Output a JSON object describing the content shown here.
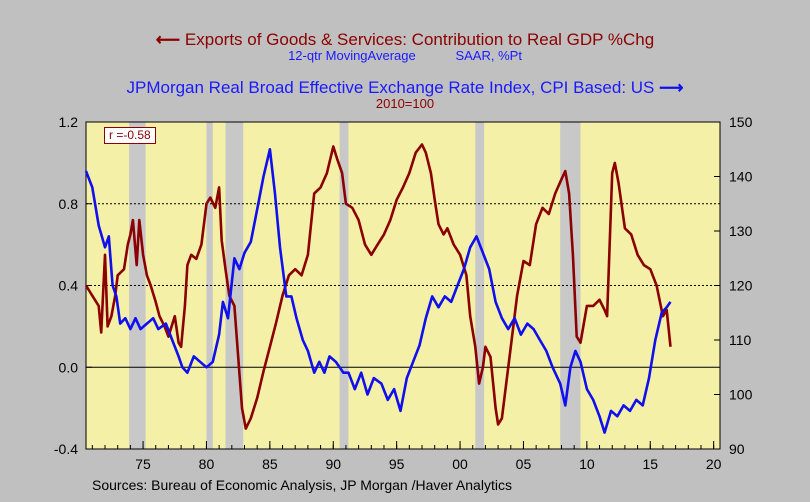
{
  "title": {
    "line1": "Exports of Goods & Services: Contribution to Real GDP %Chg",
    "line1_sub_left": "12-qtr MovingAverage",
    "line1_sub_right": "SAAR, %Pt",
    "line2": "JPMorgan Real Broad Effective Exchange Rate Index, CPI Based: US",
    "line2_sub": "2010=100"
  },
  "source": "Sources:  Bureau of Economic Analysis, JP Morgan /Haver Analytics",
  "annotation": "r =-0.58",
  "colors": {
    "exports": "#8b0000",
    "fx": "#1010ee",
    "plot_bg": "#f5f0a8",
    "recession": "#c8c8c8",
    "page_bg": "#c0c0c0"
  },
  "chart_data": {
    "type": "line",
    "x_axis": {
      "range": [
        1970.5,
        2020.5
      ],
      "ticks": [
        1975,
        1980,
        1985,
        1990,
        1995,
        2000,
        2005,
        2010,
        2015,
        2020
      ],
      "tick_labels": [
        "75",
        "80",
        "85",
        "90",
        "95",
        "00",
        "05",
        "10",
        "15",
        "20"
      ]
    },
    "y_left": {
      "range": [
        -0.4,
        1.2
      ],
      "ticks": [
        -0.4,
        0.0,
        0.4,
        0.8,
        1.2
      ],
      "tick_labels": [
        "-0.4",
        "0.0",
        "0.4",
        "0.8",
        "1.2"
      ],
      "reference_lines": [
        0.0,
        0.4,
        0.8
      ]
    },
    "y_right": {
      "range": [
        90,
        150
      ],
      "ticks": [
        90,
        100,
        110,
        120,
        130,
        140,
        150
      ],
      "tick_labels": [
        "90",
        "100",
        "110",
        "120",
        "130",
        "140",
        "150"
      ]
    },
    "recessions": [
      [
        1973.9,
        1975.2
      ],
      [
        1980.0,
        1980.5
      ],
      [
        1981.5,
        1982.9
      ],
      [
        1990.5,
        1991.2
      ],
      [
        2001.2,
        2001.9
      ],
      [
        2007.9,
        2009.5
      ]
    ],
    "series": [
      {
        "axis": "left",
        "points": [
          [
            1970.5,
            0.4
          ],
          [
            1971.0,
            0.35
          ],
          [
            1971.5,
            0.3
          ],
          [
            1971.7,
            0.17
          ],
          [
            1972.0,
            0.55
          ],
          [
            1972.2,
            0.2
          ],
          [
            1972.5,
            0.25
          ],
          [
            1972.8,
            0.35
          ],
          [
            1973.0,
            0.45
          ],
          [
            1973.5,
            0.48
          ],
          [
            1973.8,
            0.6
          ],
          [
            1974.0,
            0.65
          ],
          [
            1974.2,
            0.72
          ],
          [
            1974.5,
            0.5
          ],
          [
            1974.7,
            0.72
          ],
          [
            1975.0,
            0.55
          ],
          [
            1975.3,
            0.45
          ],
          [
            1975.6,
            0.4
          ],
          [
            1976.0,
            0.32
          ],
          [
            1976.3,
            0.25
          ],
          [
            1976.7,
            0.2
          ],
          [
            1977.0,
            0.15
          ],
          [
            1977.5,
            0.25
          ],
          [
            1977.8,
            0.12
          ],
          [
            1978.0,
            0.1
          ],
          [
            1978.3,
            0.3
          ],
          [
            1978.5,
            0.5
          ],
          [
            1978.8,
            0.55
          ],
          [
            1979.2,
            0.53
          ],
          [
            1979.6,
            0.6
          ],
          [
            1980.0,
            0.8
          ],
          [
            1980.3,
            0.83
          ],
          [
            1980.7,
            0.78
          ],
          [
            1981.0,
            0.88
          ],
          [
            1981.2,
            0.62
          ],
          [
            1981.5,
            0.48
          ],
          [
            1981.8,
            0.35
          ],
          [
            1982.2,
            0.3
          ],
          [
            1982.5,
            0.05
          ],
          [
            1982.8,
            -0.2
          ],
          [
            1983.1,
            -0.3
          ],
          [
            1983.5,
            -0.25
          ],
          [
            1984.0,
            -0.15
          ],
          [
            1984.5,
            -0.02
          ],
          [
            1985.0,
            0.1
          ],
          [
            1985.5,
            0.22
          ],
          [
            1986.0,
            0.35
          ],
          [
            1986.5,
            0.45
          ],
          [
            1987.0,
            0.48
          ],
          [
            1987.5,
            0.45
          ],
          [
            1988.0,
            0.55
          ],
          [
            1988.5,
            0.85
          ],
          [
            1989.0,
            0.88
          ],
          [
            1989.5,
            0.95
          ],
          [
            1990.0,
            1.08
          ],
          [
            1990.3,
            1.02
          ],
          [
            1990.7,
            0.95
          ],
          [
            1991.0,
            0.8
          ],
          [
            1991.5,
            0.78
          ],
          [
            1992.0,
            0.72
          ],
          [
            1992.5,
            0.6
          ],
          [
            1993.0,
            0.55
          ],
          [
            1993.5,
            0.6
          ],
          [
            1994.0,
            0.65
          ],
          [
            1994.5,
            0.72
          ],
          [
            1995.0,
            0.82
          ],
          [
            1995.5,
            0.88
          ],
          [
            1996.0,
            0.95
          ],
          [
            1996.5,
            1.05
          ],
          [
            1997.0,
            1.09
          ],
          [
            1997.3,
            1.05
          ],
          [
            1997.7,
            0.95
          ],
          [
            1998.0,
            0.82
          ],
          [
            1998.3,
            0.7
          ],
          [
            1998.7,
            0.65
          ],
          [
            1999.0,
            0.68
          ],
          [
            1999.5,
            0.6
          ],
          [
            2000.0,
            0.55
          ],
          [
            2000.5,
            0.45
          ],
          [
            2000.8,
            0.25
          ],
          [
            2001.2,
            0.1
          ],
          [
            2001.5,
            -0.08
          ],
          [
            2001.8,
            0.0
          ],
          [
            2002.0,
            0.1
          ],
          [
            2002.4,
            0.05
          ],
          [
            2002.8,
            -0.2
          ],
          [
            2003.0,
            -0.28
          ],
          [
            2003.3,
            -0.25
          ],
          [
            2003.6,
            -0.1
          ],
          [
            2004.0,
            0.1
          ],
          [
            2004.5,
            0.35
          ],
          [
            2005.0,
            0.52
          ],
          [
            2005.5,
            0.5
          ],
          [
            2006.0,
            0.7
          ],
          [
            2006.5,
            0.78
          ],
          [
            2007.0,
            0.75
          ],
          [
            2007.5,
            0.85
          ],
          [
            2008.0,
            0.92
          ],
          [
            2008.3,
            0.96
          ],
          [
            2008.6,
            0.85
          ],
          [
            2008.9,
            0.55
          ],
          [
            2009.2,
            0.15
          ],
          [
            2009.5,
            0.12
          ],
          [
            2010.0,
            0.3
          ],
          [
            2010.5,
            0.3
          ],
          [
            2011.0,
            0.33
          ],
          [
            2011.4,
            0.28
          ],
          [
            2011.6,
            0.25
          ],
          [
            2012.0,
            0.95
          ],
          [
            2012.2,
            1.0
          ],
          [
            2012.5,
            0.9
          ],
          [
            2013.0,
            0.68
          ],
          [
            2013.5,
            0.65
          ],
          [
            2014.0,
            0.55
          ],
          [
            2014.5,
            0.5
          ],
          [
            2015.0,
            0.48
          ],
          [
            2015.5,
            0.4
          ],
          [
            2016.0,
            0.25
          ],
          [
            2016.3,
            0.28
          ],
          [
            2016.6,
            0.1
          ]
        ]
      },
      {
        "axis": "right",
        "points": [
          [
            1970.5,
            141
          ],
          [
            1971.0,
            138
          ],
          [
            1971.5,
            131
          ],
          [
            1972.0,
            127
          ],
          [
            1972.3,
            129
          ],
          [
            1972.6,
            120
          ],
          [
            1972.9,
            118
          ],
          [
            1973.2,
            113
          ],
          [
            1973.6,
            114
          ],
          [
            1974.0,
            112
          ],
          [
            1974.4,
            114
          ],
          [
            1974.8,
            112
          ],
          [
            1975.3,
            113
          ],
          [
            1975.8,
            114
          ],
          [
            1976.2,
            112
          ],
          [
            1976.8,
            113
          ],
          [
            1977.3,
            110
          ],
          [
            1977.8,
            107
          ],
          [
            1978.1,
            105
          ],
          [
            1978.5,
            104
          ],
          [
            1979.0,
            107
          ],
          [
            1979.5,
            106
          ],
          [
            1980.0,
            105
          ],
          [
            1980.5,
            106
          ],
          [
            1981.0,
            111
          ],
          [
            1981.3,
            117
          ],
          [
            1981.7,
            114
          ],
          [
            1982.2,
            125
          ],
          [
            1982.6,
            123
          ],
          [
            1983.0,
            126
          ],
          [
            1983.5,
            128
          ],
          [
            1984.0,
            134
          ],
          [
            1984.5,
            140
          ],
          [
            1985.0,
            145
          ],
          [
            1985.4,
            137
          ],
          [
            1985.8,
            127
          ],
          [
            1986.3,
            118
          ],
          [
            1986.7,
            118
          ],
          [
            1987.1,
            114
          ],
          [
            1987.6,
            110
          ],
          [
            1988.0,
            108
          ],
          [
            1988.5,
            104
          ],
          [
            1988.9,
            106
          ],
          [
            1989.3,
            104
          ],
          [
            1989.7,
            107
          ],
          [
            1990.2,
            106
          ],
          [
            1990.8,
            104
          ],
          [
            1991.2,
            104
          ],
          [
            1991.7,
            101
          ],
          [
            1992.2,
            104
          ],
          [
            1992.7,
            100
          ],
          [
            1993.2,
            103
          ],
          [
            1993.8,
            102
          ],
          [
            1994.3,
            99
          ],
          [
            1994.8,
            101
          ],
          [
            1995.3,
            97
          ],
          [
            1995.8,
            103
          ],
          [
            1996.3,
            106
          ],
          [
            1996.8,
            109
          ],
          [
            1997.3,
            114
          ],
          [
            1997.8,
            118
          ],
          [
            1998.3,
            116
          ],
          [
            1998.8,
            118
          ],
          [
            1999.3,
            117
          ],
          [
            1999.8,
            120
          ],
          [
            2000.3,
            123
          ],
          [
            2000.8,
            127
          ],
          [
            2001.3,
            129
          ],
          [
            2001.8,
            126
          ],
          [
            2002.3,
            123
          ],
          [
            2002.8,
            117
          ],
          [
            2003.3,
            114
          ],
          [
            2003.8,
            112
          ],
          [
            2004.3,
            114
          ],
          [
            2004.8,
            111
          ],
          [
            2005.3,
            113
          ],
          [
            2005.8,
            112
          ],
          [
            2006.3,
            110
          ],
          [
            2006.8,
            108
          ],
          [
            2007.3,
            105
          ],
          [
            2007.9,
            102
          ],
          [
            2008.3,
            98
          ],
          [
            2008.7,
            105
          ],
          [
            2009.1,
            108
          ],
          [
            2009.5,
            106
          ],
          [
            2010.0,
            101
          ],
          [
            2010.5,
            99
          ],
          [
            2011.0,
            96
          ],
          [
            2011.4,
            93
          ],
          [
            2011.9,
            97
          ],
          [
            2012.4,
            96
          ],
          [
            2012.9,
            98
          ],
          [
            2013.4,
            97
          ],
          [
            2013.9,
            99
          ],
          [
            2014.4,
            98
          ],
          [
            2014.9,
            103
          ],
          [
            2015.4,
            110
          ],
          [
            2015.9,
            115
          ],
          [
            2016.3,
            116
          ],
          [
            2016.6,
            117
          ]
        ]
      }
    ]
  }
}
